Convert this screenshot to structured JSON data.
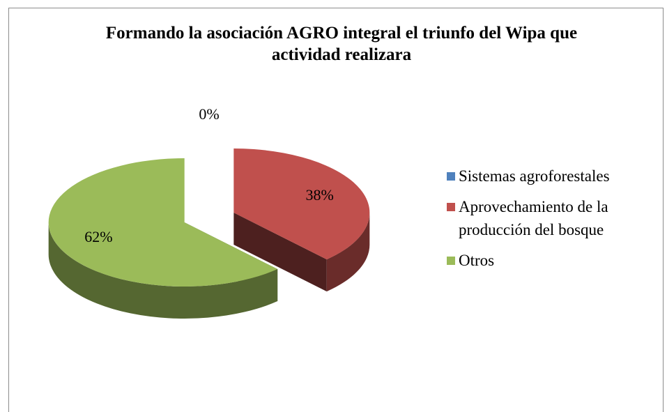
{
  "chart_data": {
    "type": "pie",
    "title": "Formando la asociación AGRO integral el triunfo del Wipa que actividad realizara",
    "categories": [
      "Sistemas agroforestales",
      "Aprovechamiento de la producción del bosque",
      "Otros"
    ],
    "values": [
      0,
      38,
      62
    ],
    "value_labels": [
      "0%",
      "38%",
      "62%"
    ],
    "colors": [
      "#4f81bd",
      "#c0504d",
      "#9bbb59"
    ],
    "legend": "right"
  }
}
